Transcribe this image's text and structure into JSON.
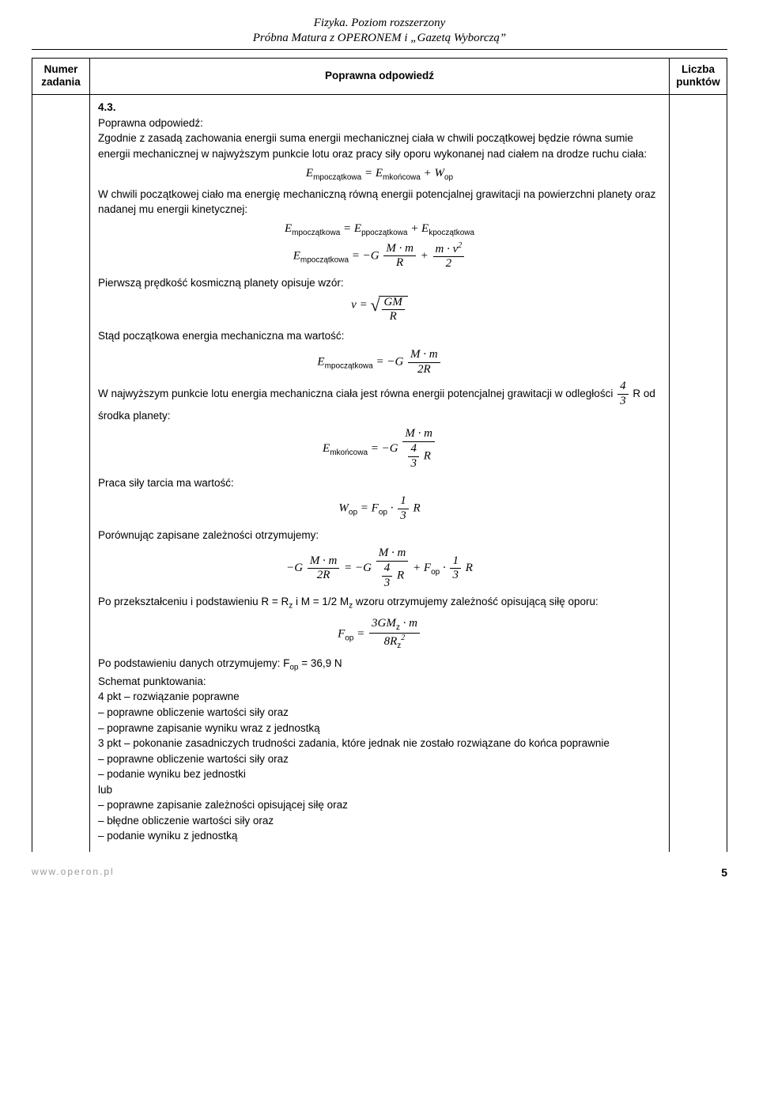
{
  "header": {
    "line1": "Fizyka. Poziom rozszerzony",
    "line2": "Próbna Matura z OPERONEM i „Gazetą Wyborczą”"
  },
  "columns": {
    "num": "Numer zadania",
    "answer": "Poprawna odpowiedź",
    "pts": "Liczba punktów"
  },
  "task": {
    "number": "4.3.",
    "intro_label": "Poprawna odpowiedź:",
    "para1": "Zgodnie z zasadą zachowania energii suma energii mechanicznej ciała w chwili początkowej będzie równa sumie energii mechanicznej w najwyższym punkcie lotu oraz pracy siły oporu wykonanej nad ciałem na drodze ruchu ciała:",
    "eq1_lhs_sub": "mpoczątkowa",
    "eq1_rhs1_sub": "mkońcowa",
    "eq1_rhs2_sub": "op",
    "para2": "W chwili początkowej ciało ma energię mechaniczną równą energii potencjalnej grawitacji na powierzchni planety oraz nadanej mu energii kinetycznej:",
    "eq2_sub1": "mpoczątkowa",
    "eq2_sub2": "ppoczątkowa",
    "eq2_sub3": "kpoczątkowa",
    "para3": "Pierwszą prędkość kosmiczną planety opisuje wzór:",
    "para4": "Stąd początkowa energia mechaniczna ma wartość:",
    "para5a": "W najwyższym punkcie lotu energia mechaniczna ciała jest równa energii potencjalnej grawitacji w odległości ",
    "para5b": " R od środka planety:",
    "para6": "Praca siły tarcia ma wartość:",
    "para7": "Porównując zapisane zależności otrzymujemy:",
    "para8a": "Po przekształceniu i podstawieniu R = R",
    "para8b": " i M = 1/2 M",
    "para8c": " wzoru otrzymujemy zależność opisującą siłę oporu:",
    "para9a": "Po podstawieniu danych otrzymujemy: F",
    "para9b": " = 36,9 N",
    "scheme_label": "Schemat punktowania:",
    "sch_4a": "4 pkt – rozwiązanie poprawne",
    "sch_4b": "– poprawne obliczenie wartości siły oraz",
    "sch_4c": "– poprawne zapisanie wyniku wraz z jednostką",
    "sch_3a": "3 pkt – pokonanie zasadniczych trudności zadania, które jednak nie zostało rozwiązane do końca poprawnie",
    "sch_3b": "– poprawne obliczenie wartości siły oraz",
    "sch_3c": "– podanie wyniku bez jednostki",
    "sch_or": "lub",
    "sch_3d": "– poprawne zapisanie zależności opisującej siłę oraz",
    "sch_3e": "– błędne obliczenie wartości siły oraz",
    "sch_3f": "– podanie wyniku z jednostką"
  },
  "footer": {
    "url": "www.operon.pl",
    "page": "5"
  }
}
